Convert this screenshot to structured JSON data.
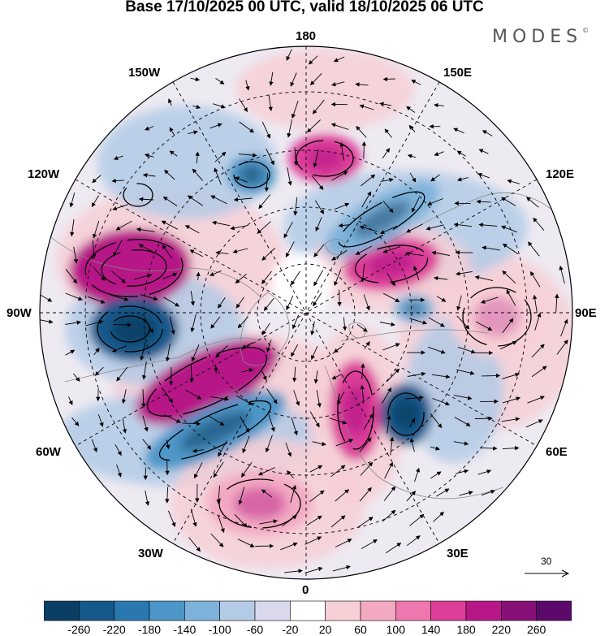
{
  "title": "Base 17/10/2025 00 UTC, valid 18/10/2025 06 UTC",
  "logo": "MODES",
  "logo_mark": "©",
  "longitude_labels": {
    "n180": "180",
    "w150": "150W",
    "e150": "150E",
    "w120": "120W",
    "e120": "120E",
    "w90": "90W",
    "e90": "90E",
    "w60": "60W",
    "e60": "60E",
    "w30": "30W",
    "e30": "30E",
    "s0": "0"
  },
  "reference_vector": {
    "label": "30"
  },
  "colorbar": {
    "labels": [
      "-260",
      "-220",
      "-180",
      "-140",
      "-100",
      "-60",
      "-20",
      "20",
      "60",
      "100",
      "140",
      "180",
      "220",
      "260"
    ],
    "colors": [
      "#0b3e63",
      "#15598a",
      "#2a78b0",
      "#4d96c8",
      "#7eb2da",
      "#b3cbe6",
      "#dad8ec",
      "#ffffff",
      "#f7cfd6",
      "#f3a9c2",
      "#ec78ad",
      "#dc3e99",
      "#b71787",
      "#871078",
      "#5b0a6b"
    ]
  },
  "anomalies": [
    {
      "name": "pink-aleutian",
      "value": 160,
      "color": "#dc3e99"
    },
    {
      "name": "pink-canada-west",
      "value": 200,
      "color": "#b71787"
    },
    {
      "name": "blue-hudson",
      "value": -220,
      "color": "#15598a"
    },
    {
      "name": "pink-greenland",
      "value": 200,
      "color": "#b71787"
    },
    {
      "name": "blue-atlantic",
      "value": -140,
      "color": "#4d96c8"
    },
    {
      "name": "pink-north-atlantic",
      "value": 120,
      "color": "#f3a9c2"
    },
    {
      "name": "pink-scandinavia",
      "value": 180,
      "color": "#dc3e99"
    },
    {
      "name": "blue-western-russia",
      "value": -200,
      "color": "#15598a"
    },
    {
      "name": "pink-siberia",
      "value": 180,
      "color": "#dc3e99"
    },
    {
      "name": "pink-chukchi",
      "value": 160,
      "color": "#dc3e99"
    },
    {
      "name": "pink-central-asia",
      "value": 80,
      "color": "#f7cfd6"
    },
    {
      "name": "blue-east-siberia",
      "value": -120,
      "color": "#7eb2da"
    },
    {
      "name": "blue-alaska",
      "value": -140,
      "color": "#4d96c8"
    },
    {
      "name": "blue-kara",
      "value": -120,
      "color": "#7eb2da"
    }
  ]
}
